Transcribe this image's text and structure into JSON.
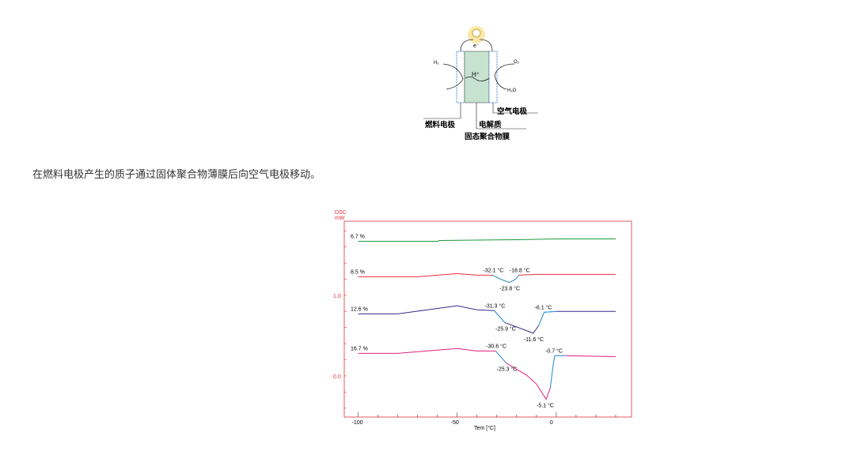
{
  "diagram": {
    "electron": "e⁻",
    "h2": "H₂",
    "o2": "O₂",
    "h2o": "H₂O",
    "proton": "H⁺",
    "air_electrode": "空气电极",
    "fuel_electrode": "燃料电极",
    "electrolyte": "电解质",
    "membrane": "固态聚合物膜"
  },
  "caption": "在燃料电极产生的质子通过固体聚合物薄膜后向空气电极移动。",
  "chart_data": {
    "type": "line",
    "ylabel": "DSC\nmW",
    "ylabel_lines": [
      "DSC",
      "mW"
    ],
    "xlabel": "Tem [°C]",
    "xlim": [
      -107,
      38
    ],
    "ylim": [
      -0.51,
      1.92
    ],
    "xticks": [
      -100,
      -50,
      0
    ],
    "xtick_labels": [
      "-100",
      "-50",
      "0"
    ],
    "yticks": [
      0.0,
      1.0
    ],
    "ytick_labels": [
      "0.0",
      "1.0"
    ],
    "grid": false,
    "colors": {
      "axis_label": "#e0303a",
      "highlight": "#2aa8e0"
    },
    "series": [
      {
        "name": "6.7 %",
        "color": "#1a9a3a",
        "x": [
          -100,
          -60,
          -59,
          -20,
          0,
          30
        ],
        "y": [
          1.67,
          1.67,
          1.68,
          1.69,
          1.7,
          1.7
        ],
        "highlight": [],
        "annotations": []
      },
      {
        "name": "8.5 %",
        "color": "#e8303a",
        "x": [
          -100,
          -70,
          -50,
          -40,
          -32.1,
          -28,
          -23.8,
          -21,
          -18.8,
          -10,
          30
        ],
        "y": [
          1.23,
          1.23,
          1.27,
          1.25,
          1.25,
          1.2,
          1.16,
          1.19,
          1.25,
          1.26,
          1.26
        ],
        "highlight": [
          -32.1,
          -18.8
        ],
        "annotations": [
          {
            "x": -32.1,
            "text": "-32.1 °C"
          },
          {
            "x": -18.8,
            "text": "-18.8 °C"
          },
          {
            "x": -23.8,
            "text": "-23.8 °C"
          }
        ]
      },
      {
        "name": "12.6 %",
        "color": "#3a2a8a",
        "x": [
          -100,
          -80,
          -65,
          -50,
          -40,
          -31.3,
          -25.9,
          -18,
          -11.6,
          -9,
          -6.1,
          0,
          30
        ],
        "y": [
          0.77,
          0.77,
          0.82,
          0.87,
          0.82,
          0.81,
          0.66,
          0.59,
          0.53,
          0.62,
          0.79,
          0.8,
          0.8
        ],
        "highlight": [
          -31.3,
          -25.9,
          -9,
          0
        ],
        "annotations": [
          {
            "x": -31.3,
            "text": "-31.3 °C"
          },
          {
            "x": -25.9,
            "text": "-25.9 °C"
          },
          {
            "x": -11.6,
            "text": "-11.6 °C"
          },
          {
            "x": -6.1,
            "text": "-6.1 °C"
          }
        ]
      },
      {
        "name": "16.7 %",
        "color": "#e0207a",
        "x": [
          -100,
          -80,
          -50,
          -40,
          -30.6,
          -25.3,
          -15,
          -10,
          -5.1,
          -3,
          -1.5,
          -0.7,
          5,
          30
        ],
        "y": [
          0.28,
          0.28,
          0.34,
          0.31,
          0.31,
          0.16,
          0.01,
          -0.1,
          -0.29,
          -0.15,
          0.15,
          0.25,
          0.25,
          0.24
        ],
        "highlight": [
          -30.6,
          -25.3,
          -3,
          5
        ],
        "annotations": [
          {
            "x": -30.6,
            "text": "-30.6 °C"
          },
          {
            "x": -25.3,
            "text": "-25.3 °C"
          },
          {
            "x": -5.1,
            "text": "-5.1 °C"
          },
          {
            "x": -0.7,
            "text": "-0.7 °C"
          }
        ]
      }
    ]
  }
}
